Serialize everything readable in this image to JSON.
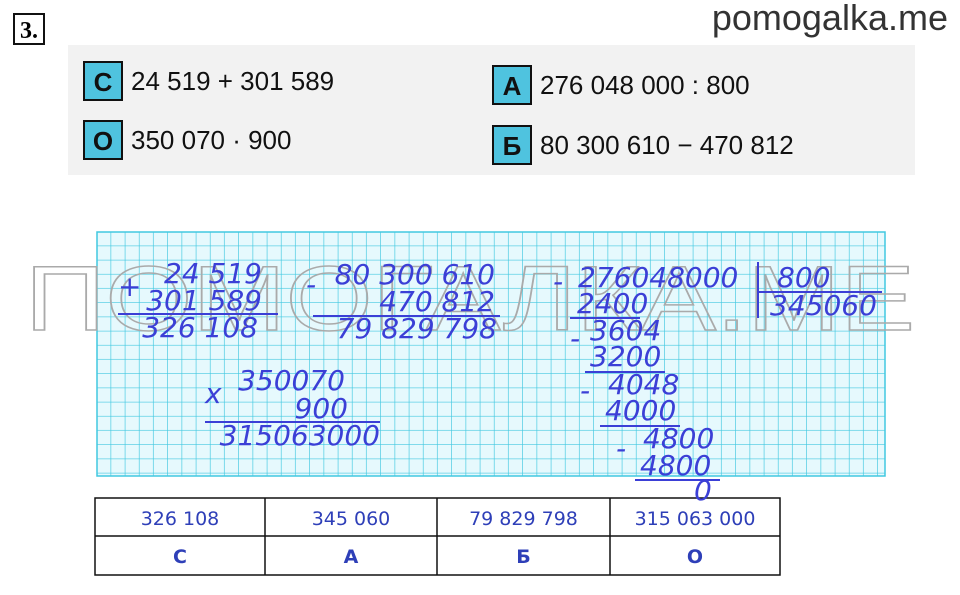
{
  "exercise_number": "3.",
  "site": "pomogalka.me",
  "watermark": "ПОМОГАЛКА.МЕ",
  "tasks": [
    {
      "letter": "С",
      "expression": "24 519 + 301 589"
    },
    {
      "letter": "О",
      "expression": "350 070 · 900"
    },
    {
      "letter": "А",
      "expression": "276 048 000 : 800"
    },
    {
      "letter": "Б",
      "expression": "80 300 610 − 470 812"
    }
  ],
  "work": [
    "+",
    "24 519",
    "301 589",
    "326 108",
    "-",
    "80 300 610",
    "470 812",
    "79 829 798",
    "x",
    "350070",
    "900",
    "315063000",
    "-",
    "276048000",
    "800",
    "345060",
    "2400",
    "-",
    "3604",
    "3200",
    "-",
    "4048",
    "4000",
    "-",
    "4800",
    "4800",
    "0"
  ],
  "table": {
    "rows": [
      [
        "326 108",
        "345 060",
        "79 829 798",
        "315 063 000"
      ],
      [
        "С",
        "А",
        "Б",
        "О"
      ]
    ]
  }
}
